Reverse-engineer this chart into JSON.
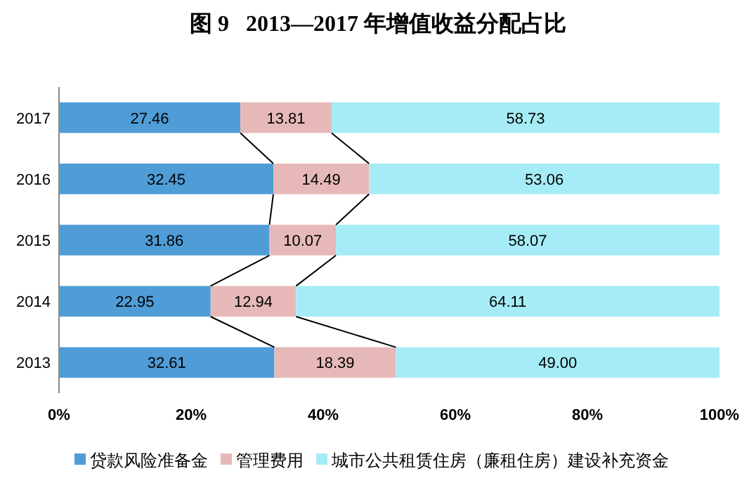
{
  "chart_data": {
    "type": "bar",
    "orientation": "horizontal",
    "stacked": true,
    "title": "图 9   2013—2017 年增值收益分配占比",
    "categories": [
      "2017",
      "2016",
      "2015",
      "2014",
      "2013"
    ],
    "series": [
      {
        "name": "贷款风险准备金",
        "color": "#4f9cd6",
        "values": [
          27.46,
          32.45,
          31.86,
          22.95,
          32.61
        ],
        "value_labels": [
          "27.46",
          "32.45",
          "31.86",
          "22.95",
          "32.61"
        ]
      },
      {
        "name": "管理费用",
        "color": "#e6b9b8",
        "values": [
          13.81,
          14.49,
          10.07,
          12.94,
          18.39
        ],
        "value_labels": [
          "13.81",
          "14.49",
          "10.07",
          "12.94",
          "18.39"
        ]
      },
      {
        "name": "城市公共租赁住房（廉租住房）建设补充资金",
        "color": "#a6ecf6",
        "values": [
          58.73,
          53.06,
          58.07,
          64.11,
          49.0
        ],
        "value_labels": [
          "58.73",
          "53.06",
          "58.07",
          "64.11",
          "49.00"
        ]
      }
    ],
    "xlim": [
      0,
      100
    ],
    "xticks": [
      {
        "value": 0,
        "label": "0%"
      },
      {
        "value": 20,
        "label": "20%"
      },
      {
        "value": 40,
        "label": "40%"
      },
      {
        "value": 60,
        "label": "60%"
      },
      {
        "value": 80,
        "label": "80%"
      },
      {
        "value": 100,
        "label": "100%"
      }
    ],
    "grid": false,
    "legend": "bottom"
  }
}
